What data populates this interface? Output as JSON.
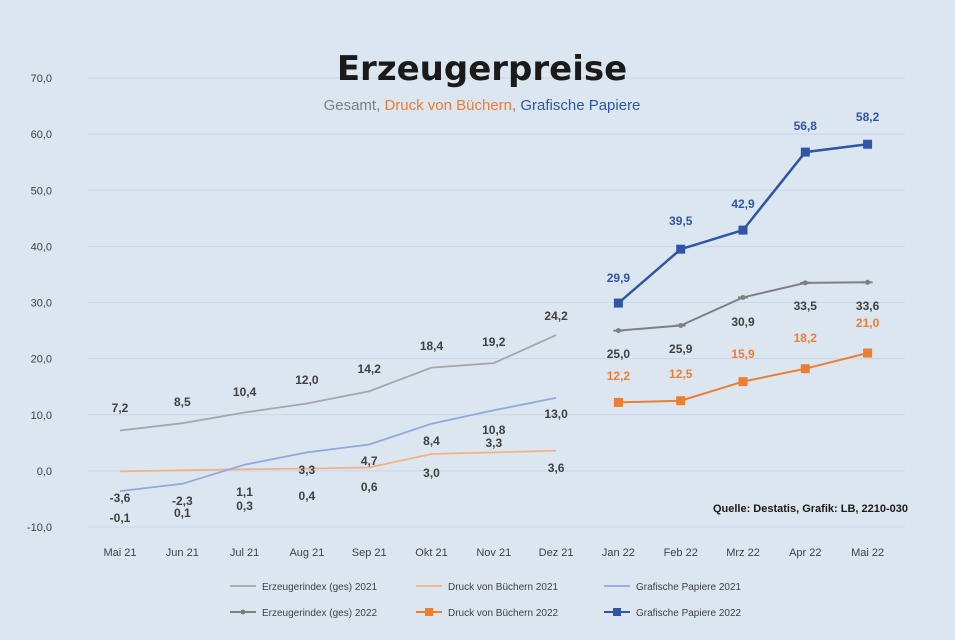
{
  "chart_data": {
    "type": "line",
    "title": "Erzeugerpreise",
    "subtitle": {
      "prefix": "Gesamt, ",
      "part_orange": "Druck von Büchern",
      "separator": ", ",
      "part_blue": "Grafische Papiere"
    },
    "source": "Quelle: Destatis, Grafik: LB, 2210-030",
    "categories": [
      "Mai 21",
      "Jun 21",
      "Jul 21",
      "Aug 21",
      "Sep 21",
      "Okt 21",
      "Nov 21",
      "Dez 21",
      "Jan 22",
      "Feb 22",
      "Mrz 22",
      "Apr 22",
      "Mai 22"
    ],
    "y_ticks": [
      "70,0",
      "60,0",
      "50,0",
      "40,0",
      "30,0",
      "20,0",
      "10,0",
      "0,0",
      "-10,0"
    ],
    "ylim": [
      -10,
      70
    ],
    "legend_position": "bottom",
    "series": [
      {
        "name": "Erzeugerindex (ges) 2021",
        "color": "#a6a6a6",
        "style": "line",
        "values": [
          7.2,
          8.5,
          10.4,
          12.0,
          14.2,
          18.4,
          19.2,
          24.2,
          null,
          null,
          null,
          null,
          null
        ],
        "labels": [
          "7,2",
          "8,5",
          "10,4",
          "12,0",
          "14,2",
          "18,4",
          "19,2",
          "24,2",
          null,
          null,
          null,
          null,
          null
        ]
      },
      {
        "name": "Druck von Büchern 2021",
        "color": "#f4b183",
        "style": "line",
        "values": [
          -0.1,
          0.1,
          0.3,
          0.4,
          0.6,
          3.0,
          3.3,
          3.6,
          null,
          null,
          null,
          null,
          null
        ],
        "labels": [
          "-0,1",
          "0,1",
          "0,3",
          "0,4",
          "0,6",
          "3,0",
          "3,3",
          "3,6",
          null,
          null,
          null,
          null,
          null
        ]
      },
      {
        "name": "Grafische Papiere 2021",
        "color": "#8ea9db",
        "style": "line",
        "values": [
          -3.6,
          -2.3,
          1.1,
          3.3,
          4.7,
          8.4,
          10.8,
          13.0,
          null,
          null,
          null,
          null,
          null
        ],
        "labels": [
          "-3,6",
          "-2,3",
          "1,1",
          "3,3",
          "4,7",
          "8,4",
          "10,8",
          "13,0",
          null,
          null,
          null,
          null,
          null
        ]
      },
      {
        "name": "Erzeugerindex (ges) 2022",
        "color": "#7f7f7f",
        "style": "marker",
        "values": [
          null,
          null,
          null,
          null,
          null,
          null,
          null,
          null,
          25.0,
          25.9,
          30.9,
          33.5,
          33.6
        ],
        "labels": [
          null,
          null,
          null,
          null,
          null,
          null,
          null,
          null,
          "25,0",
          "25,9",
          "30,9",
          "33,5",
          "33,6"
        ]
      },
      {
        "name": "Druck von Büchern 2022",
        "color": "#ed7d31",
        "style": "marker",
        "values": [
          null,
          null,
          null,
          null,
          null,
          null,
          null,
          null,
          12.2,
          12.5,
          15.9,
          18.2,
          21.0
        ],
        "labels": [
          null,
          null,
          null,
          null,
          null,
          null,
          null,
          null,
          "12,2",
          "12,5",
          "15,9",
          "18,2",
          "21,0"
        ]
      },
      {
        "name": "Grafische Papiere 2022",
        "color": "#2f55a4",
        "style": "marker",
        "values": [
          null,
          null,
          null,
          null,
          null,
          null,
          null,
          null,
          29.9,
          39.5,
          42.9,
          56.8,
          58.2
        ],
        "labels": [
          null,
          null,
          null,
          null,
          null,
          null,
          null,
          null,
          "29,9",
          "39,5",
          "42,9",
          "56,8",
          "58,2"
        ]
      }
    ]
  }
}
